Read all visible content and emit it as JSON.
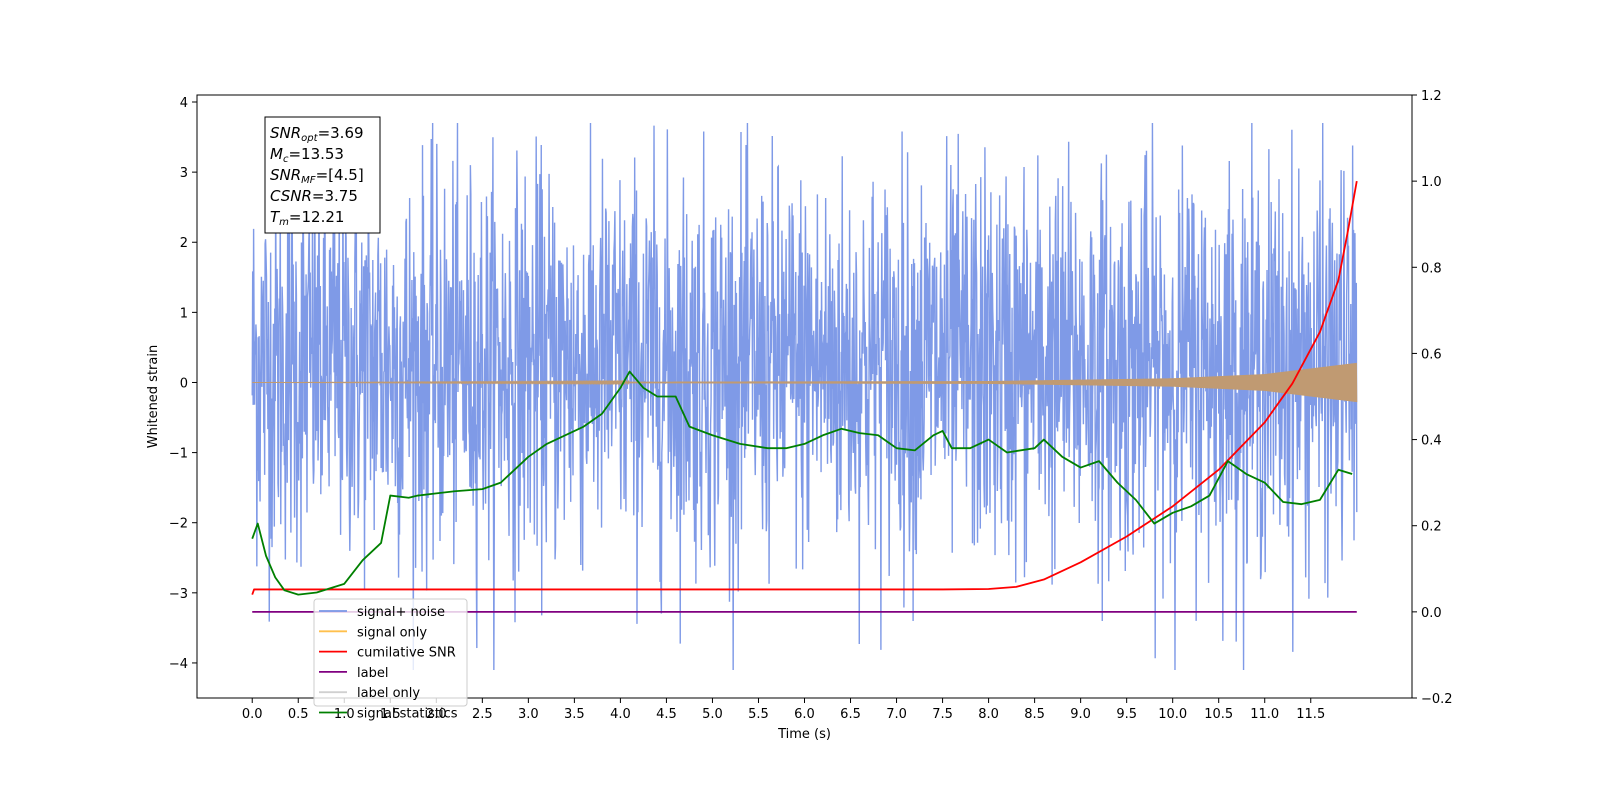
{
  "chart_data": {
    "type": "line",
    "xlabel": "Time (s)",
    "ylabel": "Whitened strain",
    "xlim": [
      -0.6,
      12.6
    ],
    "ylim": [
      -4.5,
      4.1
    ],
    "y2lim": [
      -0.2,
      1.2
    ],
    "x_ticks": [
      0.0,
      0.5,
      1.0,
      1.5,
      2.0,
      2.5,
      3.0,
      3.5,
      4.0,
      4.5,
      5.0,
      5.5,
      6.0,
      6.5,
      7.0,
      7.5,
      8.0,
      8.5,
      9.0,
      9.5,
      10.0,
      10.5,
      11.0,
      11.5
    ],
    "x_tick_labels": [
      "0.0",
      "0.5",
      "1.0",
      "1.5",
      "2.0",
      "2.5",
      "3.0",
      "3.5",
      "4.0",
      "4.5",
      "5.0",
      "5.5",
      "6.0",
      "6.5",
      "7.0",
      "7.5",
      "8.0",
      "8.5",
      "9.0",
      "9.5",
      "10.0",
      "10.5",
      "11.0",
      "11.5"
    ],
    "y_ticks": [
      -4,
      -3,
      -2,
      -1,
      0,
      1,
      2,
      3,
      4
    ],
    "y_tick_labels": [
      "−4",
      "−3",
      "−2",
      "−1",
      "0",
      "1",
      "2",
      "3",
      "4"
    ],
    "y2_ticks": [
      -0.2,
      0.0,
      0.2,
      0.4,
      0.6,
      0.8,
      1.0,
      1.2
    ],
    "y2_tick_labels": [
      "−0.2",
      "0.0",
      "0.2",
      "0.4",
      "0.6",
      "0.8",
      "1.0",
      "1.2"
    ],
    "grid": false,
    "legend": {
      "placement": "lower-left",
      "entries": [
        {
          "label": "signal+ noise",
          "color": "#7895e6"
        },
        {
          "label": "signal only",
          "color": "#ffc04d"
        },
        {
          "label": "cumilative SNR",
          "color": "#ff0000"
        },
        {
          "label": "label",
          "color": "#800080"
        },
        {
          "label": "label only",
          "color": "#d0d0d0"
        },
        {
          "label": "signal statistics",
          "color": "#008000"
        }
      ]
    },
    "annotation": {
      "lines": [
        {
          "base": "SNR",
          "sub": "opt",
          "value": "=3.69"
        },
        {
          "base": "M",
          "sub": "c",
          "value": "=13.53"
        },
        {
          "base": "SNR",
          "sub": "MF",
          "value": "=[4.5]"
        },
        {
          "base": "CSNR",
          "sub": "",
          "value": "=3.75"
        },
        {
          "base": "T",
          "sub": "m",
          "value": "=12.21"
        }
      ]
    },
    "series": [
      {
        "name": "signal+ noise",
        "axis": "left",
        "color": "#7895e6",
        "style": "dense noise band",
        "x_range": [
          0.0,
          12.0
        ],
        "typical_min": -2.0,
        "typical_max": 2.5,
        "extreme_min": -4.1,
        "extreme_max": 3.7
      },
      {
        "name": "signal only",
        "axis": "left",
        "color": "#c09a72",
        "style": "chirp",
        "x_range": [
          0.0,
          12.0
        ],
        "amplitude_points": [
          [
            0.0,
            0.0
          ],
          [
            8.0,
            0.02
          ],
          [
            10.0,
            0.06
          ],
          [
            11.0,
            0.12
          ],
          [
            12.0,
            0.28
          ]
        ]
      },
      {
        "name": "cumilative SNR",
        "axis": "right",
        "color": "#ff0000",
        "x": [
          0.0,
          0.02,
          1.0,
          4.0,
          7.5,
          8.0,
          8.3,
          8.6,
          9.0,
          9.5,
          10.0,
          10.5,
          11.0,
          11.3,
          11.6,
          11.8,
          11.9,
          12.0
        ],
        "values": [
          0.04,
          0.052,
          0.052,
          0.052,
          0.052,
          0.053,
          0.058,
          0.075,
          0.115,
          0.175,
          0.245,
          0.33,
          0.44,
          0.53,
          0.65,
          0.77,
          0.88,
          1.0
        ]
      },
      {
        "name": "label",
        "axis": "right",
        "color": "#800080",
        "x": [
          0.0,
          12.0
        ],
        "values": [
          0.0,
          0.0
        ]
      },
      {
        "name": "signal statistics",
        "axis": "right",
        "color": "#008000",
        "x": [
          0.0,
          0.06,
          0.15,
          0.25,
          0.35,
          0.5,
          0.7,
          1.0,
          1.2,
          1.4,
          1.5,
          1.7,
          1.8,
          2.0,
          2.2,
          2.5,
          2.7,
          3.0,
          3.2,
          3.4,
          3.6,
          3.8,
          4.0,
          4.1,
          4.25,
          4.4,
          4.6,
          4.75,
          5.0,
          5.3,
          5.6,
          5.8,
          6.0,
          6.2,
          6.4,
          6.6,
          6.8,
          7.0,
          7.2,
          7.4,
          7.5,
          7.6,
          7.8,
          8.0,
          8.2,
          8.5,
          8.6,
          8.8,
          9.0,
          9.2,
          9.4,
          9.6,
          9.8,
          10.0,
          10.2,
          10.4,
          10.6,
          10.8,
          11.0,
          11.2,
          11.4,
          11.6,
          11.8,
          11.95
        ],
        "values": [
          0.17,
          0.205,
          0.13,
          0.08,
          0.05,
          0.04,
          0.045,
          0.065,
          0.12,
          0.16,
          0.27,
          0.265,
          0.27,
          0.275,
          0.28,
          0.285,
          0.3,
          0.36,
          0.39,
          0.41,
          0.43,
          0.46,
          0.52,
          0.558,
          0.52,
          0.5,
          0.5,
          0.43,
          0.41,
          0.39,
          0.38,
          0.38,
          0.39,
          0.41,
          0.425,
          0.415,
          0.41,
          0.38,
          0.375,
          0.41,
          0.42,
          0.38,
          0.38,
          0.4,
          0.37,
          0.38,
          0.4,
          0.36,
          0.335,
          0.35,
          0.3,
          0.26,
          0.205,
          0.23,
          0.245,
          0.27,
          0.35,
          0.32,
          0.3,
          0.255,
          0.25,
          0.26,
          0.33,
          0.32
        ]
      }
    ]
  }
}
